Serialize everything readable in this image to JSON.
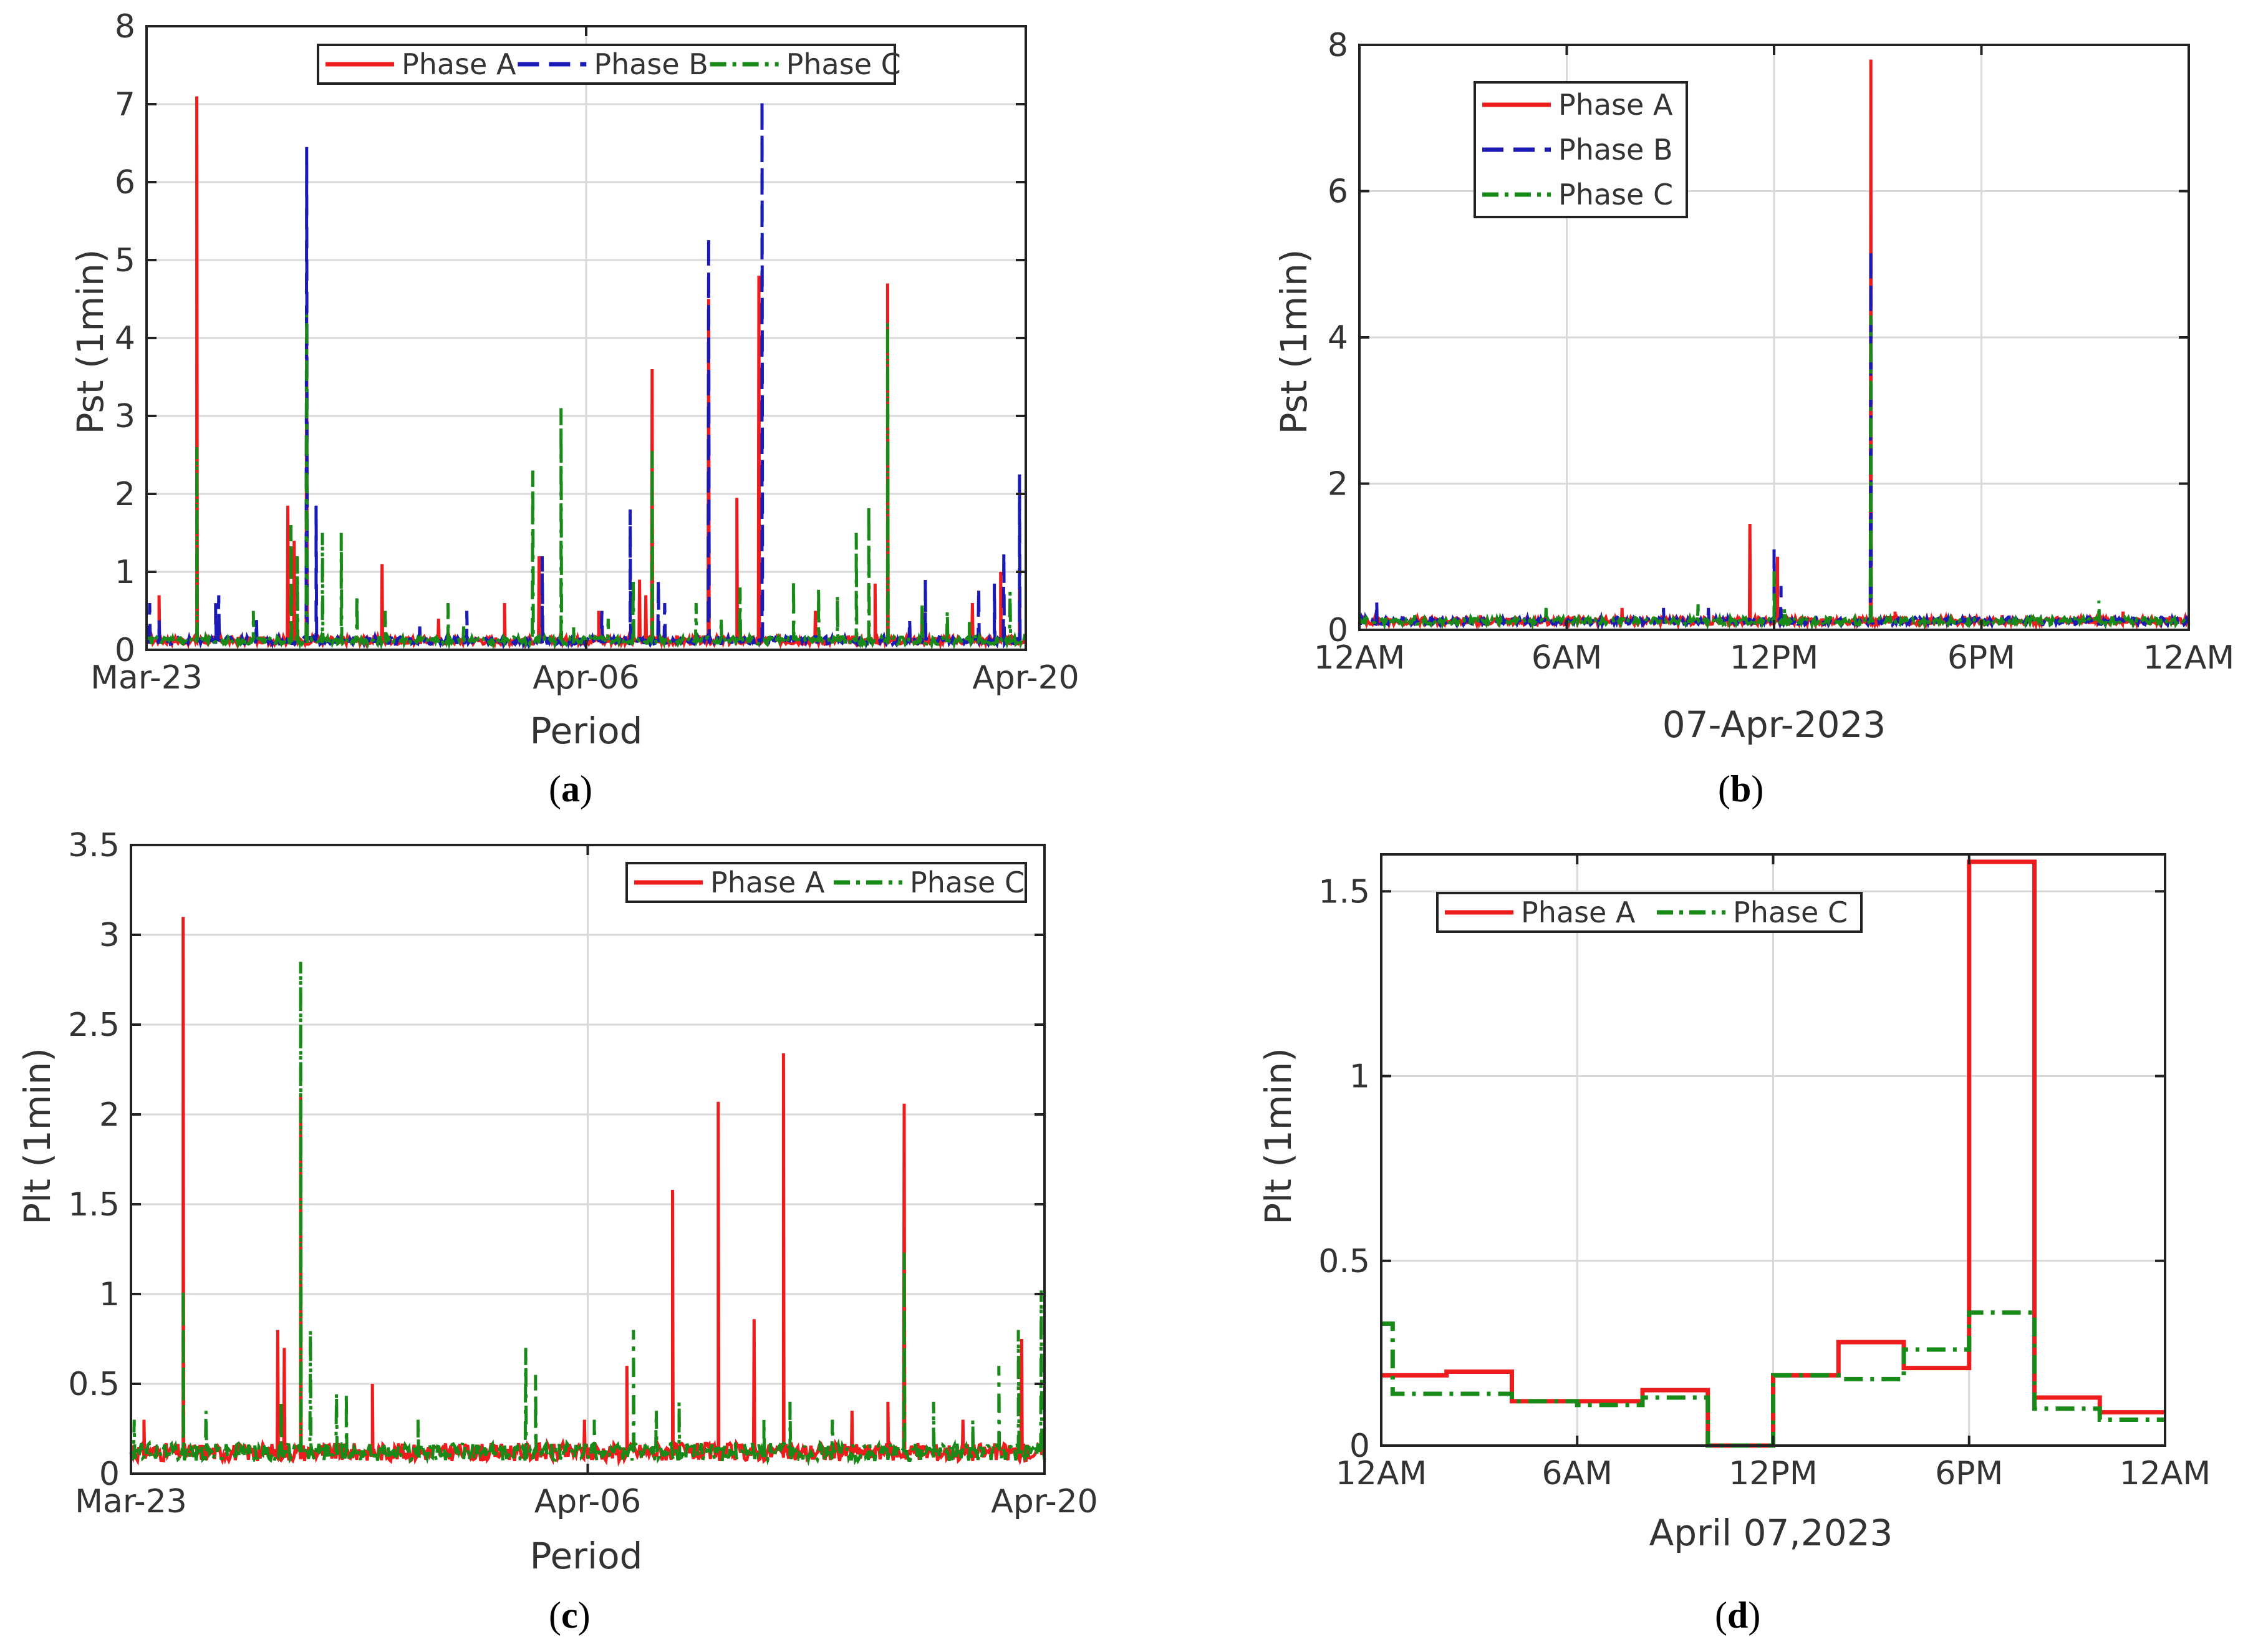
{
  "figure": {
    "colors": {
      "phase_a": "#ee1c1c",
      "phase_b": "#1a1ab4",
      "phase_c": "#188a18",
      "grid": "#d9d9d9",
      "axis": "#222222",
      "text": "#333333"
    }
  },
  "chart_data": [
    {
      "panel": "a",
      "caption_letter": "a",
      "type": "line",
      "title": "",
      "xlabel": "Period",
      "ylabel": "Pst (1min)",
      "x_unit": "days since Mar-23",
      "xlim": [
        0,
        28
      ],
      "ylim": [
        0,
        8
      ],
      "x_ticks": [
        {
          "x": 0,
          "label": "Mar-23"
        },
        {
          "x": 14,
          "label": "Apr-06"
        },
        {
          "x": 28,
          "label": "Apr-20"
        }
      ],
      "y_ticks": [
        {
          "y": 0,
          "label": "0"
        },
        {
          "y": 1,
          "label": "1"
        },
        {
          "y": 2,
          "label": "2"
        },
        {
          "y": 3,
          "label": "3"
        },
        {
          "y": 4,
          "label": "4"
        },
        {
          "y": 5,
          "label": "5"
        },
        {
          "y": 6,
          "label": "6"
        },
        {
          "y": 7,
          "label": "7"
        },
        {
          "y": 8,
          "label": "8"
        }
      ],
      "grid": true,
      "legend": {
        "placement": "top-center",
        "orientation": "horizontal",
        "entries": [
          "Phase A",
          "Phase B",
          "Phase C"
        ]
      },
      "baseline": 0.12,
      "series": [
        {
          "name": "Phase A",
          "style": "solid",
          "spikes": [
            [
              0.1,
              0.3
            ],
            [
              0.4,
              0.7
            ],
            [
              1.6,
              7.1
            ],
            [
              4.5,
              1.85
            ],
            [
              4.7,
              1.4
            ],
            [
              5.1,
              4.4
            ],
            [
              7.5,
              1.1
            ],
            [
              9.3,
              0.4
            ],
            [
              11.4,
              0.6
            ],
            [
              12.5,
              1.2
            ],
            [
              14.4,
              0.5
            ],
            [
              15.7,
              0.9
            ],
            [
              15.9,
              0.7
            ],
            [
              16.1,
              3.6
            ],
            [
              17.9,
              4.5
            ],
            [
              18.8,
              1.95
            ],
            [
              19.5,
              4.8
            ],
            [
              21.3,
              0.5
            ],
            [
              23.2,
              0.85
            ],
            [
              23.6,
              4.7
            ],
            [
              24.7,
              0.5
            ],
            [
              26.3,
              0.6
            ],
            [
              27.2,
              1.0
            ],
            [
              27.8,
              0.8
            ]
          ]
        },
        {
          "name": "Phase B",
          "style": "dashed",
          "spikes": [
            [
              0.1,
              0.6
            ],
            [
              0.4,
              0.4
            ],
            [
              2.2,
              0.6
            ],
            [
              2.3,
              0.7
            ],
            [
              3.5,
              0.4
            ],
            [
              5.1,
              6.45
            ],
            [
              5.4,
              1.85
            ],
            [
              8.7,
              0.3
            ],
            [
              10.2,
              0.5
            ],
            [
              12.6,
              1.2
            ],
            [
              14.5,
              0.5
            ],
            [
              15.4,
              1.8
            ],
            [
              16.3,
              0.9
            ],
            [
              16.5,
              0.6
            ],
            [
              17.9,
              5.3
            ],
            [
              19.6,
              7.05
            ],
            [
              24.3,
              0.4
            ],
            [
              24.8,
              0.9
            ],
            [
              26.5,
              0.8
            ],
            [
              27.0,
              0.85
            ],
            [
              27.3,
              1.25
            ],
            [
              27.8,
              2.25
            ]
          ]
        },
        {
          "name": "Phase C",
          "style": "dashdot",
          "spikes": [
            [
              1.6,
              2.6
            ],
            [
              3.4,
              0.5
            ],
            [
              4.6,
              1.6
            ],
            [
              4.8,
              1.2
            ],
            [
              5.1,
              4.3
            ],
            [
              5.6,
              1.5
            ],
            [
              6.2,
              1.5
            ],
            [
              6.7,
              0.7
            ],
            [
              7.6,
              0.5
            ],
            [
              9.6,
              0.6
            ],
            [
              10.1,
              0.3
            ],
            [
              12.3,
              2.3
            ],
            [
              13.2,
              3.1
            ],
            [
              13.6,
              0.3
            ],
            [
              14.7,
              0.4
            ],
            [
              15.5,
              0.9
            ],
            [
              16.1,
              2.55
            ],
            [
              17.5,
              0.6
            ],
            [
              18.3,
              0.4
            ],
            [
              18.9,
              0.8
            ],
            [
              20.6,
              0.9
            ],
            [
              21.4,
              0.8
            ],
            [
              22.0,
              0.7
            ],
            [
              22.6,
              1.5
            ],
            [
              23.0,
              1.85
            ],
            [
              23.6,
              4.2
            ],
            [
              24.7,
              0.6
            ],
            [
              25.5,
              0.5
            ],
            [
              26.2,
              0.4
            ],
            [
              27.5,
              0.75
            ]
          ]
        }
      ]
    },
    {
      "panel": "b",
      "caption_letter": "b",
      "type": "line",
      "title": "",
      "xlabel": "07-Apr-2023",
      "ylabel": "Pst (1min)",
      "x_unit": "hours",
      "xlim": [
        0,
        24
      ],
      "ylim": [
        0,
        8
      ],
      "x_ticks": [
        {
          "x": 0,
          "label": "12AM"
        },
        {
          "x": 6,
          "label": "6AM"
        },
        {
          "x": 12,
          "label": "12PM"
        },
        {
          "x": 18,
          "label": "6PM"
        },
        {
          "x": 24,
          "label": "12AM"
        }
      ],
      "y_ticks": [
        {
          "y": 0,
          "label": "0"
        },
        {
          "y": 2,
          "label": "2"
        },
        {
          "y": 4,
          "label": "4"
        },
        {
          "y": 6,
          "label": "6"
        },
        {
          "y": 8,
          "label": "8"
        }
      ],
      "grid": true,
      "legend": {
        "placement": "top-left",
        "orientation": "vertical",
        "entries": [
          "Phase A",
          "Phase B",
          "Phase C"
        ]
      },
      "baseline": 0.12,
      "series": [
        {
          "name": "Phase A",
          "style": "solid",
          "spikes": [
            [
              3.5,
              0.2
            ],
            [
              7.6,
              0.3
            ],
            [
              11.3,
              1.45
            ],
            [
              12.1,
              1.0
            ],
            [
              14.8,
              7.8
            ],
            [
              15.5,
              0.25
            ],
            [
              18.6,
              0.2
            ],
            [
              22.1,
              0.25
            ]
          ]
        },
        {
          "name": "Phase B",
          "style": "dashed",
          "spikes": [
            [
              0.5,
              0.4
            ],
            [
              8.8,
              0.3
            ],
            [
              10.1,
              0.3
            ],
            [
              12.0,
              1.1
            ],
            [
              12.2,
              0.6
            ],
            [
              14.8,
              5.2
            ],
            [
              18.8,
              0.2
            ]
          ]
        },
        {
          "name": "Phase C",
          "style": "dashdot",
          "spikes": [
            [
              1.6,
              0.2
            ],
            [
              5.4,
              0.3
            ],
            [
              9.8,
              0.35
            ],
            [
              12.0,
              0.8
            ],
            [
              12.3,
              0.3
            ],
            [
              14.8,
              4.3
            ],
            [
              21.4,
              0.4
            ]
          ]
        }
      ]
    },
    {
      "panel": "c",
      "caption_letter": "c",
      "type": "line",
      "title": "",
      "xlabel": "Period",
      "ylabel": "Plt (1min)",
      "x_unit": "days since Mar-23",
      "xlim": [
        0,
        28
      ],
      "ylim": [
        0,
        3.5
      ],
      "x_ticks": [
        {
          "x": 0,
          "label": "Mar-23"
        },
        {
          "x": 14,
          "label": "Apr-06"
        },
        {
          "x": 28,
          "label": "Apr-20"
        }
      ],
      "y_ticks": [
        {
          "y": 0,
          "label": "0"
        },
        {
          "y": 0.5,
          "label": "0.5"
        },
        {
          "y": 1,
          "label": "1"
        },
        {
          "y": 1.5,
          "label": "1.5"
        },
        {
          "y": 2,
          "label": "2"
        },
        {
          "y": 2.5,
          "label": "2.5"
        },
        {
          "y": 3,
          "label": "3"
        },
        {
          "y": 3.5,
          "label": "3.5"
        }
      ],
      "grid": true,
      "legend": {
        "placement": "top-right",
        "orientation": "horizontal",
        "entries": [
          "Phase A",
          "Phase C"
        ]
      },
      "baseline": 0.12,
      "series": [
        {
          "name": "Phase A",
          "style": "solid",
          "spikes": [
            [
              0.4,
              0.3
            ],
            [
              1.6,
              3.1
            ],
            [
              4.5,
              0.8
            ],
            [
              4.7,
              0.7
            ],
            [
              5.2,
              2.1
            ],
            [
              7.4,
              0.5
            ],
            [
              10.5,
              0.15
            ],
            [
              13.9,
              0.3
            ],
            [
              15.2,
              0.6
            ],
            [
              16.6,
              1.58
            ],
            [
              18.0,
              2.07
            ],
            [
              19.1,
              0.86
            ],
            [
              20.0,
              2.34
            ],
            [
              22.1,
              0.35
            ],
            [
              23.2,
              0.4
            ],
            [
              23.7,
              2.06
            ],
            [
              25.5,
              0.3
            ],
            [
              27.3,
              0.75
            ]
          ]
        },
        {
          "name": "Phase C",
          "style": "dashdot",
          "spikes": [
            [
              0.1,
              0.3
            ],
            [
              1.6,
              1.02
            ],
            [
              2.3,
              0.35
            ],
            [
              4.6,
              0.4
            ],
            [
              5.2,
              2.85
            ],
            [
              5.5,
              0.8
            ],
            [
              6.3,
              0.45
            ],
            [
              6.6,
              0.45
            ],
            [
              8.8,
              0.3
            ],
            [
              12.1,
              0.7
            ],
            [
              12.4,
              0.55
            ],
            [
              14.2,
              0.3
            ],
            [
              15.4,
              0.8
            ],
            [
              16.1,
              0.35
            ],
            [
              16.8,
              0.4
            ],
            [
              19.4,
              0.3
            ],
            [
              20.2,
              0.4
            ],
            [
              21.5,
              0.3
            ],
            [
              23.7,
              1.23
            ],
            [
              24.6,
              0.4
            ],
            [
              25.8,
              0.3
            ],
            [
              26.6,
              0.6
            ],
            [
              27.2,
              0.8
            ],
            [
              27.9,
              1.02
            ]
          ]
        }
      ]
    },
    {
      "panel": "d",
      "caption_letter": "d",
      "type": "line",
      "title": "",
      "xlabel": "April 07,2023",
      "ylabel": "Plt (1min)",
      "x_unit": "hours",
      "xlim": [
        0,
        24
      ],
      "ylim": [
        0,
        1.6
      ],
      "x_ticks": [
        {
          "x": 0,
          "label": "12AM"
        },
        {
          "x": 6,
          "label": "6AM"
        },
        {
          "x": 12,
          "label": "12PM"
        },
        {
          "x": 18,
          "label": "6PM"
        },
        {
          "x": 24,
          "label": "12AM"
        }
      ],
      "y_ticks": [
        {
          "y": 0,
          "label": "0"
        },
        {
          "y": 0.5,
          "label": "0.5"
        },
        {
          "y": 1,
          "label": "1"
        },
        {
          "y": 1.5,
          "label": "1.5"
        }
      ],
      "grid": true,
      "legend": {
        "placement": "top-left",
        "orientation": "horizontal",
        "entries": [
          "Phase A",
          "Phase C"
        ]
      },
      "series": [
        {
          "name": "Phase A",
          "style": "solid",
          "step": true,
          "x": [
            0,
            2,
            4,
            6,
            8,
            10,
            12,
            14,
            16,
            18,
            20,
            22,
            24
          ],
          "values": [
            0.19,
            0.2,
            0.12,
            0.12,
            0.15,
            0.0,
            0.19,
            0.28,
            0.21,
            1.58,
            0.13,
            0.09,
            0.1
          ]
        },
        {
          "name": "Phase C",
          "style": "dashdot",
          "step": true,
          "x": [
            0,
            0.35,
            2,
            4,
            6,
            8,
            10,
            12,
            14,
            16,
            18,
            20,
            22,
            24
          ],
          "values": [
            0.33,
            0.14,
            0.14,
            0.12,
            0.11,
            0.13,
            0.0,
            0.19,
            0.18,
            0.26,
            0.36,
            0.1,
            0.07,
            0.1
          ]
        }
      ]
    }
  ]
}
